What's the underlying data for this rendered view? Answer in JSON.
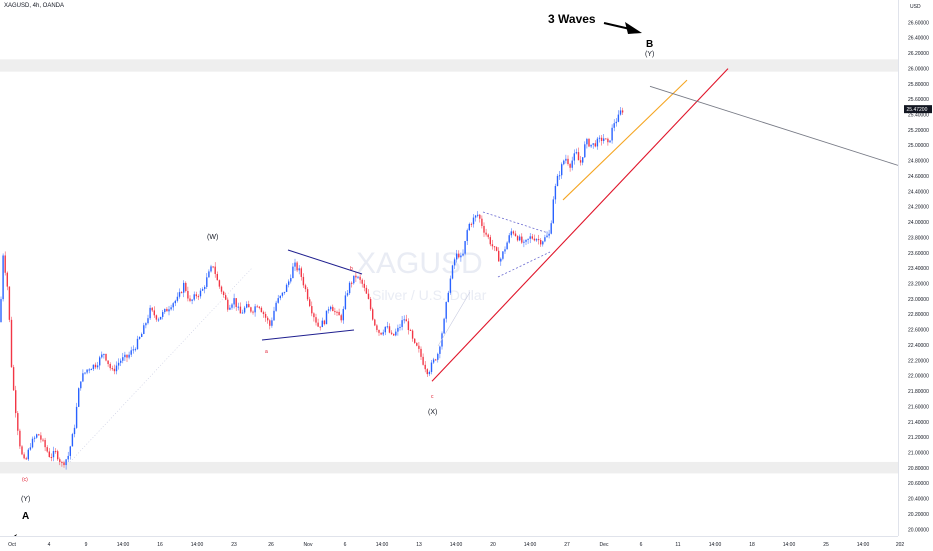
{
  "header": {
    "symbol_title": "XAGUSD, 4h, OANDA",
    "currency": "USD"
  },
  "watermark": {
    "symbol": "XAGUSD",
    "description": "Silver / U.S. Dollar"
  },
  "colors": {
    "up_candle": "#2962ff",
    "down_candle": "#f23645",
    "trend_red": "#e0162b",
    "trend_orange": "#f5a623",
    "projection_gray": "#787b86",
    "triangle_navy": "#1f1f8f",
    "triangle_dashed": "#6a6ad0",
    "zone_gray": "#eeeeee",
    "current_price_bg": "#131722"
  },
  "chart_data": {
    "type": "candlestick",
    "symbol": "XAGUSD",
    "interval": "4h",
    "source": "OANDA",
    "y_axis": {
      "unit": "USD",
      "range": [
        19.98,
        26.75
      ],
      "tick_labels": [
        "26.60000",
        "26.40000",
        "26.20000",
        "26.00000",
        "25.80000",
        "25.60000",
        "25.40000",
        "25.20000",
        "25.00000",
        "24.80000",
        "24.60000",
        "24.40000",
        "24.20000",
        "24.00000",
        "23.80000",
        "23.60000",
        "23.40000",
        "23.20000",
        "23.00000",
        "22.80000",
        "22.60000",
        "22.40000",
        "22.20000",
        "22.00000",
        "21.80000",
        "21.60000",
        "21.40000",
        "21.20000",
        "21.00000",
        "20.80000",
        "20.60000",
        "20.40000",
        "20.20000",
        "20.00000"
      ],
      "tick_values": [
        26.6,
        26.4,
        26.2,
        26.0,
        25.8,
        25.6,
        25.4,
        25.2,
        25.0,
        24.8,
        24.6,
        24.4,
        24.2,
        24.0,
        23.8,
        23.6,
        23.4,
        23.2,
        23.0,
        22.8,
        22.6,
        22.4,
        22.2,
        22.0,
        21.8,
        21.6,
        21.4,
        21.2,
        21.0,
        20.8,
        20.6,
        20.4,
        20.2,
        20.0
      ],
      "current_price_label": "25.47200",
      "current_price": 25.472
    },
    "x_axis": {
      "tick_labels": [
        "Oct",
        "4",
        "9",
        "14:00",
        "16",
        "14:00",
        "23",
        "26",
        "Nov",
        "6",
        "14:00",
        "13",
        "14:00",
        "20",
        "14:00",
        "27",
        "Dec",
        "6",
        "11",
        "14:00",
        "18",
        "14:00",
        "25",
        "14:00",
        "202"
      ]
    },
    "path_points": [
      [
        0,
        22.7
      ],
      [
        3,
        23.6
      ],
      [
        8,
        23.1
      ],
      [
        12,
        22.0
      ],
      [
        17,
        21.4
      ],
      [
        21,
        21.0
      ],
      [
        25,
        20.85
      ],
      [
        30,
        21.1
      ],
      [
        38,
        21.25
      ],
      [
        44,
        21.1
      ],
      [
        50,
        20.95
      ],
      [
        56,
        21.0
      ],
      [
        62,
        20.85
      ],
      [
        68,
        20.95
      ],
      [
        74,
        21.3
      ],
      [
        80,
        21.95
      ],
      [
        88,
        22.1
      ],
      [
        96,
        22.15
      ],
      [
        104,
        22.3
      ],
      [
        112,
        22.05
      ],
      [
        120,
        22.2
      ],
      [
        128,
        22.25
      ],
      [
        136,
        22.4
      ],
      [
        142,
        22.55
      ],
      [
        150,
        22.85
      ],
      [
        158,
        22.75
      ],
      [
        166,
        22.85
      ],
      [
        172,
        22.95
      ],
      [
        178,
        23.0
      ],
      [
        184,
        23.2
      ],
      [
        190,
        22.95
      ],
      [
        196,
        23.05
      ],
      [
        202,
        23.1
      ],
      [
        208,
        23.3
      ],
      [
        213,
        23.45
      ],
      [
        218,
        23.2
      ],
      [
        222,
        23.1
      ],
      [
        228,
        22.9
      ],
      [
        234,
        23.0
      ],
      [
        240,
        22.8
      ],
      [
        246,
        22.9
      ],
      [
        252,
        22.85
      ],
      [
        258,
        22.95
      ],
      [
        264,
        22.8
      ],
      [
        270,
        22.65
      ],
      [
        276,
        22.95
      ],
      [
        282,
        23.05
      ],
      [
        288,
        23.2
      ],
      [
        294,
        23.45
      ],
      [
        300,
        23.35
      ],
      [
        306,
        23.1
      ],
      [
        312,
        22.85
      ],
      [
        318,
        22.65
      ],
      [
        324,
        22.7
      ],
      [
        330,
        22.95
      ],
      [
        336,
        22.8
      ],
      [
        342,
        22.75
      ],
      [
        346,
        23.05
      ],
      [
        350,
        23.2
      ],
      [
        356,
        23.3
      ],
      [
        362,
        23.2
      ],
      [
        368,
        23.0
      ],
      [
        374,
        22.7
      ],
      [
        380,
        22.55
      ],
      [
        386,
        22.65
      ],
      [
        392,
        22.5
      ],
      [
        398,
        22.6
      ],
      [
        404,
        22.75
      ],
      [
        408,
        22.65
      ],
      [
        414,
        22.4
      ],
      [
        418,
        22.35
      ],
      [
        424,
        22.15
      ],
      [
        428,
        22.05
      ],
      [
        432,
        22.15
      ],
      [
        438,
        22.3
      ],
      [
        444,
        22.7
      ],
      [
        448,
        23.1
      ],
      [
        454,
        23.5
      ],
      [
        458,
        23.6
      ],
      [
        462,
        23.5
      ],
      [
        468,
        23.95
      ],
      [
        474,
        24.05
      ],
      [
        478,
        24.1
      ],
      [
        484,
        23.9
      ],
      [
        490,
        23.75
      ],
      [
        496,
        23.6
      ],
      [
        500,
        23.5
      ],
      [
        506,
        23.7
      ],
      [
        512,
        23.9
      ],
      [
        518,
        23.8
      ],
      [
        524,
        23.7
      ],
      [
        530,
        23.8
      ],
      [
        536,
        23.8
      ],
      [
        540,
        23.75
      ],
      [
        546,
        23.8
      ],
      [
        550,
        23.85
      ],
      [
        553,
        24.3
      ],
      [
        557,
        24.55
      ],
      [
        561,
        24.7
      ],
      [
        565,
        24.85
      ],
      [
        570,
        24.75
      ],
      [
        576,
        24.9
      ],
      [
        580,
        24.75
      ],
      [
        586,
        25.05
      ],
      [
        592,
        25.0
      ],
      [
        598,
        25.05
      ],
      [
        604,
        25.1
      ],
      [
        608,
        25.0
      ],
      [
        614,
        25.3
      ],
      [
        618,
        25.35
      ],
      [
        621,
        25.45
      ],
      [
        624,
        25.47
      ]
    ],
    "trendlines": [
      {
        "name": "red-channel-line",
        "from": [
          432,
          21.93
        ],
        "to": [
          728,
          26.0
        ]
      },
      {
        "name": "orange-channel-line",
        "from": [
          563,
          24.29
        ],
        "to": [
          687,
          25.85
        ]
      },
      {
        "name": "gray-projection-line",
        "from": [
          650,
          25.77
        ],
        "to": [
          898,
          24.74
        ]
      }
    ],
    "zones": [
      {
        "name": "upper-resistance-zone",
        "y_range": [
          25.96,
          26.12
        ]
      },
      {
        "name": "lower-support-zone",
        "y_range": [
          20.73,
          20.88
        ]
      }
    ],
    "annotations": [
      {
        "text": "3 Waves",
        "type": "bold-label"
      },
      {
        "text": "B",
        "type": "wave-label"
      },
      {
        "text": "(Y)",
        "type": "wave-label"
      },
      {
        "text": "(W)",
        "type": "wave-label"
      },
      {
        "text": "(X)",
        "type": "wave-label"
      },
      {
        "text": "(Y)",
        "type": "wave-label"
      },
      {
        "text": "A",
        "type": "wave-label"
      },
      {
        "text": "a",
        "type": "sub-wave-label"
      },
      {
        "text": "b",
        "type": "sub-wave-label"
      },
      {
        "text": "c",
        "type": "sub-wave-label"
      },
      {
        "text": "(c)",
        "type": "sub-wave-label"
      }
    ]
  }
}
